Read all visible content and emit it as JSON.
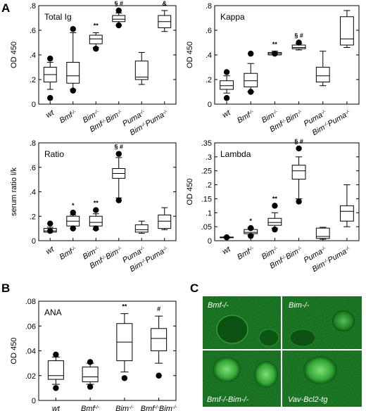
{
  "panel_labels": {
    "A": "A",
    "B": "B",
    "C": "C"
  },
  "colors": {
    "axis": "#000000",
    "micro_bg": "#0b5a12",
    "micro_text": "#ffffff"
  },
  "chart_data": [
    {
      "id": "total-ig",
      "type": "box",
      "title": "Total Ig",
      "ylabel": "OD 450",
      "ylim": [
        0,
        0.8
      ],
      "yticks": [
        0,
        0.2,
        0.4,
        0.6,
        0.8
      ],
      "ytick_labels": [
        "0",
        ".2",
        ".4",
        ".6",
        ".8"
      ],
      "categories": [
        "wt",
        "Bmf-/-",
        "Bim-/-",
        "Bmf-/-Bim-/-",
        "Puma-/-",
        "Bim-/-Puma-/-"
      ],
      "boxes": [
        {
          "low": 0.12,
          "q1": 0.18,
          "median": 0.24,
          "q3": 0.3,
          "high": 0.34,
          "outliers": [
            0.05,
            0.37
          ]
        },
        {
          "low": 0.12,
          "q1": 0.17,
          "median": 0.23,
          "q3": 0.34,
          "high": 0.58,
          "outliers": [
            0.11,
            0.61
          ]
        },
        {
          "low": 0.46,
          "q1": 0.49,
          "median": 0.53,
          "q3": 0.56,
          "high": 0.58,
          "outliers": [
            0.45
          ]
        },
        {
          "low": 0.64,
          "q1": 0.67,
          "median": 0.69,
          "q3": 0.72,
          "high": 0.74,
          "outliers": [
            0.64,
            0.76
          ]
        },
        {
          "low": 0.16,
          "q1": 0.2,
          "median": 0.22,
          "q3": 0.35,
          "high": 0.42,
          "outliers": []
        },
        {
          "low": 0.59,
          "q1": 0.62,
          "median": 0.67,
          "q3": 0.72,
          "high": 0.76,
          "outliers": []
        }
      ],
      "annotations": [
        "",
        "",
        "**",
        "§ #",
        "",
        "&"
      ]
    },
    {
      "id": "kappa",
      "type": "box",
      "title": "Kappa",
      "ylabel": "OD 450",
      "ylim": [
        0,
        0.8
      ],
      "yticks": [
        0,
        0.2,
        0.4,
        0.6,
        0.8
      ],
      "ytick_labels": [
        "0",
        ".2",
        ".4",
        ".6",
        ".8"
      ],
      "categories": [
        "wt",
        "Bmf-/-",
        "Bim-/-",
        "Bmf-/-Bim-/-",
        "Puma-/-",
        "Bim-/-Puma-/-"
      ],
      "boxes": [
        {
          "low": 0.09,
          "q1": 0.12,
          "median": 0.15,
          "q3": 0.19,
          "high": 0.23,
          "outliers": [
            0.05,
            0.26
          ]
        },
        {
          "low": 0.1,
          "q1": 0.14,
          "median": 0.19,
          "q3": 0.25,
          "high": 0.33,
          "outliers": [
            0.1,
            0.41
          ]
        },
        {
          "low": 0.4,
          "q1": 0.4,
          "median": 0.41,
          "q3": 0.42,
          "high": 0.43,
          "outliers": [
            0.41
          ]
        },
        {
          "low": 0.44,
          "q1": 0.45,
          "median": 0.46,
          "q3": 0.48,
          "high": 0.49,
          "outliers": [
            0.5
          ]
        },
        {
          "low": 0.15,
          "q1": 0.18,
          "median": 0.23,
          "q3": 0.3,
          "high": 0.43,
          "outliers": []
        },
        {
          "low": 0.46,
          "q1": 0.48,
          "median": 0.53,
          "q3": 0.71,
          "high": 0.76,
          "outliers": []
        }
      ],
      "annotations": [
        "",
        "",
        "**",
        "§ #",
        "",
        ""
      ]
    },
    {
      "id": "ratio",
      "type": "box",
      "title": "Ratio",
      "ylabel": "serum ratio l/k",
      "ylim": [
        0,
        0.8
      ],
      "yticks": [
        0,
        0.2,
        0.4,
        0.6,
        0.8
      ],
      "ytick_labels": [
        "0",
        ".2",
        ".4",
        ".6",
        ".8"
      ],
      "categories": [
        "wt",
        "Bmf-/-",
        "Bim-/-",
        "Bmf-/-Bim-/-",
        "Puma-/-",
        "Bim-/-Puma-/-"
      ],
      "boxes": [
        {
          "low": 0.07,
          "q1": 0.07,
          "median": 0.08,
          "q3": 0.1,
          "high": 0.11,
          "outliers": [
            0.08,
            0.14
          ]
        },
        {
          "low": 0.1,
          "q1": 0.12,
          "median": 0.16,
          "q3": 0.2,
          "high": 0.21,
          "outliers": [
            0.1,
            0.23
          ]
        },
        {
          "low": 0.09,
          "q1": 0.12,
          "median": 0.15,
          "q3": 0.2,
          "high": 0.22,
          "outliers": [
            0.1,
            0.25
          ]
        },
        {
          "low": 0.35,
          "q1": 0.51,
          "median": 0.55,
          "q3": 0.59,
          "high": 0.68,
          "outliers": [
            0.33,
            0.71
          ]
        },
        {
          "low": 0.06,
          "q1": 0.07,
          "median": 0.09,
          "q3": 0.13,
          "high": 0.16,
          "outliers": []
        },
        {
          "low": 0.09,
          "q1": 0.1,
          "median": 0.16,
          "q3": 0.21,
          "high": 0.27,
          "outliers": []
        }
      ],
      "annotations": [
        "",
        "*",
        "**",
        "§ #",
        "",
        ""
      ]
    },
    {
      "id": "lambda",
      "type": "box",
      "title": "Lambda",
      "ylabel": "OD 450",
      "ylim": [
        0,
        0.35
      ],
      "yticks": [
        0,
        0.05,
        0.1,
        0.15,
        0.2,
        0.25,
        0.3,
        0.35
      ],
      "ytick_labels": [
        "0",
        ".05",
        ".1",
        ".15",
        ".2",
        ".25",
        ".3",
        ".35"
      ],
      "categories": [
        "wt",
        "Bmf-/-",
        "Bim-/-",
        "Bmf-/-Bim-/-",
        "Puma-/-",
        "Bim-/-Puma-/-"
      ],
      "boxes": [
        {
          "low": 0.01,
          "q1": 0.011,
          "median": 0.012,
          "q3": 0.013,
          "high": 0.014,
          "outliers": [
            0.012
          ]
        },
        {
          "low": 0.02,
          "q1": 0.025,
          "median": 0.03,
          "q3": 0.04,
          "high": 0.045,
          "outliers": [
            0.017,
            0.045
          ]
        },
        {
          "low": 0.045,
          "q1": 0.055,
          "median": 0.065,
          "q3": 0.08,
          "high": 0.1,
          "outliers": [
            0.04,
            0.125
          ]
        },
        {
          "low": 0.15,
          "q1": 0.22,
          "median": 0.25,
          "q3": 0.27,
          "high": 0.3,
          "outliers": [
            0.14,
            0.33
          ]
        },
        {
          "low": 0.005,
          "q1": 0.008,
          "median": 0.015,
          "q3": 0.045,
          "high": 0.048,
          "outliers": []
        },
        {
          "low": 0.05,
          "q1": 0.07,
          "median": 0.105,
          "q3": 0.125,
          "high": 0.2,
          "outliers": []
        }
      ],
      "annotations": [
        "",
        "*",
        "**",
        "§ #",
        "",
        ""
      ]
    },
    {
      "id": "ana",
      "type": "box",
      "title": "ANA",
      "ylabel": "OD 450",
      "ylim": [
        0,
        0.08
      ],
      "yticks": [
        0,
        0.02,
        0.04,
        0.06,
        0.08
      ],
      "ytick_labels": [
        "0",
        ".02",
        ".04",
        ".06",
        ".08"
      ],
      "categories": [
        "wt",
        "Bmf-/-",
        "Bim-/-",
        "Bmf-/-Bim-/-"
      ],
      "boxes": [
        {
          "low": 0.013,
          "q1": 0.017,
          "median": 0.02,
          "q3": 0.032,
          "high": 0.035,
          "outliers": [
            0.01,
            0.037
          ]
        },
        {
          "low": 0.013,
          "q1": 0.015,
          "median": 0.019,
          "q3": 0.027,
          "high": 0.03,
          "outliers": [
            0.011,
            0.031
          ]
        },
        {
          "low": 0.023,
          "q1": 0.032,
          "median": 0.047,
          "q3": 0.062,
          "high": 0.07,
          "outliers": [
            0.018
          ]
        },
        {
          "low": 0.03,
          "q1": 0.04,
          "median": 0.05,
          "q3": 0.058,
          "high": 0.068,
          "outliers": [
            0.02
          ]
        }
      ],
      "annotations": [
        "",
        "",
        "**",
        "#"
      ]
    }
  ],
  "micrographs": [
    {
      "label": "Bmf-/-"
    },
    {
      "label": "Bim-/-"
    },
    {
      "label": "Bmf-/-Bim-/-"
    },
    {
      "label": "Vav-Bcl2-tg"
    }
  ]
}
